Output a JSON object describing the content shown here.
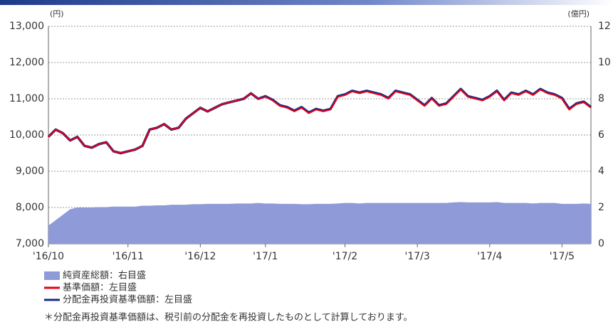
{
  "chart_data": {
    "type": "line",
    "yunit": "(円)",
    "y2unit": "(億円)",
    "categories": [
      "'16/10",
      null,
      null,
      null,
      null,
      null,
      null,
      null,
      null,
      null,
      null,
      "'16/11",
      null,
      null,
      null,
      null,
      null,
      null,
      null,
      null,
      null,
      "'16/12",
      null,
      null,
      null,
      null,
      null,
      null,
      null,
      null,
      "'17/1",
      null,
      null,
      null,
      null,
      null,
      null,
      null,
      null,
      null,
      null,
      "'17/2",
      null,
      null,
      null,
      null,
      null,
      null,
      null,
      null,
      null,
      "'17/3",
      null,
      null,
      null,
      null,
      null,
      null,
      null,
      null,
      null,
      "'17/4",
      null,
      null,
      null,
      null,
      null,
      null,
      null,
      null,
      null,
      "'17/5",
      null,
      null,
      null,
      null
    ],
    "ylim": [
      7000,
      13000
    ],
    "yticks": [
      {
        "value": 7000,
        "label": "7,000"
      },
      {
        "value": 8000,
        "label": "8,000"
      },
      {
        "value": 9000,
        "label": "9,000"
      },
      {
        "value": 10000,
        "label": "10,000"
      },
      {
        "value": 11000,
        "label": "11,000"
      },
      {
        "value": 12000,
        "label": "12,000"
      },
      {
        "value": 13000,
        "label": "13,000"
      }
    ],
    "y2lim": [
      0,
      12
    ],
    "y2ticks": [
      0,
      2,
      4,
      6,
      8,
      10,
      12
    ],
    "grid": true,
    "series": [
      {
        "name": "純資産総額：右目盛",
        "style": "area",
        "axis": "y2",
        "color": "#8f9ad8",
        "values": [
          1.0,
          1.3,
          1.6,
          1.9,
          2.0,
          2.0,
          2.0,
          2.02,
          2.02,
          2.05,
          2.05,
          2.05,
          2.05,
          2.1,
          2.1,
          2.12,
          2.12,
          2.15,
          2.15,
          2.15,
          2.18,
          2.18,
          2.2,
          2.2,
          2.2,
          2.2,
          2.22,
          2.22,
          2.22,
          2.25,
          2.22,
          2.22,
          2.2,
          2.2,
          2.2,
          2.18,
          2.18,
          2.2,
          2.2,
          2.2,
          2.22,
          2.25,
          2.25,
          2.22,
          2.25,
          2.25,
          2.25,
          2.25,
          2.25,
          2.25,
          2.25,
          2.25,
          2.25,
          2.25,
          2.25,
          2.25,
          2.28,
          2.3,
          2.28,
          2.28,
          2.28,
          2.28,
          2.3,
          2.25,
          2.25,
          2.25,
          2.25,
          2.22,
          2.25,
          2.25,
          2.25,
          2.2,
          2.2,
          2.2,
          2.22,
          2.2
        ]
      },
      {
        "name": "基準価額：左目盛",
        "style": "line",
        "color": "#e60012",
        "values": [
          9950,
          10150,
          10050,
          9850,
          9950,
          9700,
          9650,
          9750,
          9800,
          9550,
          9500,
          9550,
          9600,
          9700,
          10150,
          10200,
          10300,
          10150,
          10200,
          10450,
          10600,
          10750,
          10650,
          10750,
          10850,
          10900,
          10950,
          11000,
          11150,
          11000,
          11050,
          10950,
          10800,
          10750,
          10650,
          10750,
          10600,
          10700,
          10650,
          10700,
          11050,
          11100,
          11200,
          11150,
          11200,
          11150,
          11100,
          11000,
          11200,
          11150,
          11100,
          10950,
          10800,
          11000,
          10800,
          10850,
          11050,
          11250,
          11050,
          11000,
          10950,
          11050,
          11200,
          10950,
          11150,
          11100,
          11200,
          11100,
          11250,
          11150,
          11100,
          11000,
          10700,
          10850,
          10900,
          10750
        ]
      },
      {
        "name": "分配金再投資基準価額：左目盛",
        "style": "line",
        "color": "#1c2a86",
        "values": [
          9950,
          10150,
          10050,
          9850,
          9950,
          9700,
          9650,
          9750,
          9800,
          9550,
          9500,
          9550,
          9600,
          9700,
          10150,
          10200,
          10300,
          10150,
          10200,
          10450,
          10600,
          10750,
          10650,
          10750,
          10850,
          10900,
          10950,
          11000,
          11150,
          11000,
          11070,
          10970,
          10820,
          10770,
          10670,
          10770,
          10620,
          10720,
          10670,
          10720,
          11070,
          11120,
          11220,
          11170,
          11220,
          11170,
          11120,
          11020,
          11220,
          11170,
          11120,
          10970,
          10820,
          11020,
          10820,
          10870,
          11070,
          11270,
          11070,
          11020,
          10970,
          11070,
          11220,
          10970,
          11170,
          11120,
          11220,
          11120,
          11270,
          11170,
          11120,
          11020,
          10720,
          10870,
          10920,
          10770
        ]
      }
    ],
    "note": "＊分配金再投資基準価額は、税引前の分配金を再投資したものとして計算しております。"
  }
}
